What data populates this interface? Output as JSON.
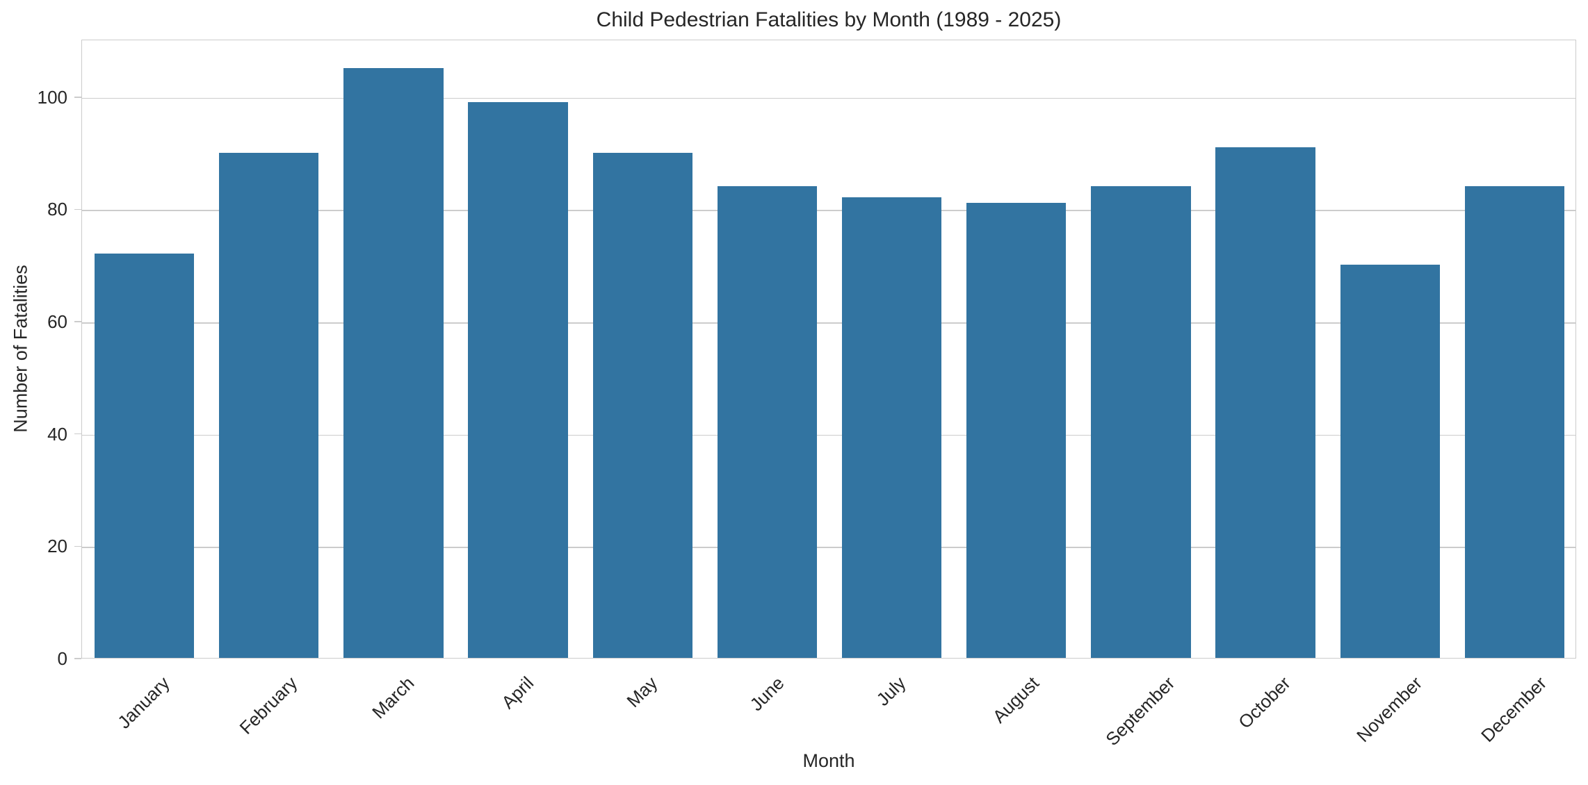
{
  "chart_data": {
    "type": "bar",
    "title": "Child Pedestrian Fatalities by Month (1989 - 2025)",
    "xlabel": "Month",
    "ylabel": "Number of Fatalities",
    "categories": [
      "January",
      "February",
      "March",
      "April",
      "May",
      "June",
      "July",
      "August",
      "September",
      "October",
      "November",
      "December"
    ],
    "values": [
      72,
      90,
      105,
      99,
      90,
      84,
      82,
      81,
      84,
      91,
      70,
      84
    ],
    "yticks": [
      0,
      20,
      40,
      60,
      80,
      100
    ],
    "ylim": [
      0,
      110.25
    ],
    "grid": "horizontal",
    "legend": "none",
    "x_tick_rotation_deg": 45,
    "colors": {
      "bar": "#3274a1",
      "grid": "#cccccc",
      "spine": "#cccccc",
      "text": "#262626",
      "background": "#ffffff"
    }
  }
}
